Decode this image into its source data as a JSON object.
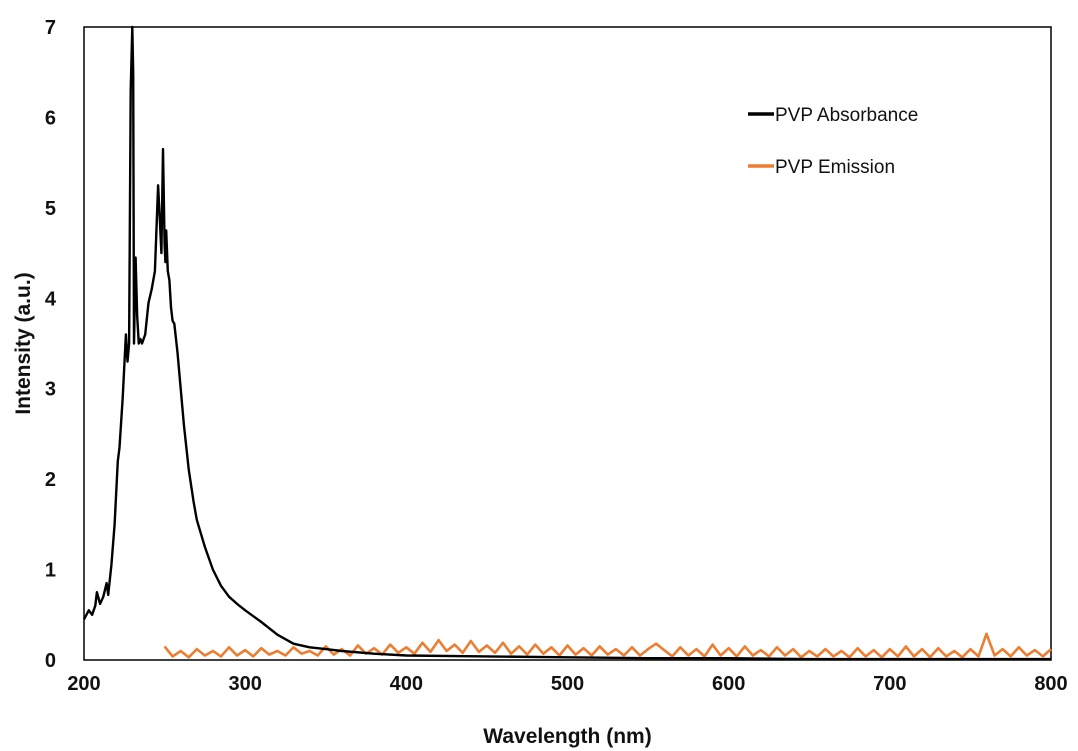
{
  "chart_data": {
    "type": "line",
    "xlabel": "Wavelength (nm)",
    "ylabel": "Intensity (a.u.)",
    "xlim": [
      200,
      800
    ],
    "ylim": [
      0,
      7
    ],
    "xticks": [
      200,
      300,
      400,
      500,
      600,
      700,
      800
    ],
    "yticks": [
      0,
      1,
      2,
      3,
      4,
      5,
      6,
      7
    ],
    "grid": false,
    "legend_position": "top-right",
    "series": [
      {
        "name": "PVP Absorbance",
        "color": "#000000",
        "x": [
          200,
          203,
          205,
          207,
          208,
          210,
          212,
          214,
          215,
          217,
          219,
          221,
          222,
          224,
          226,
          227,
          228,
          229,
          230,
          230.5,
          231,
          232,
          233,
          234,
          235,
          236,
          238,
          240,
          242,
          244,
          246,
          247,
          248,
          249,
          250,
          250.5,
          251,
          252,
          253,
          254,
          255,
          256,
          258,
          260,
          262,
          265,
          268,
          270,
          275,
          280,
          285,
          290,
          295,
          300,
          310,
          320,
          330,
          340,
          350,
          360,
          380,
          400,
          450,
          500,
          550,
          600,
          650,
          700,
          750,
          800
        ],
        "y": [
          0.45,
          0.55,
          0.5,
          0.6,
          0.75,
          0.62,
          0.7,
          0.85,
          0.72,
          1.05,
          1.5,
          2.2,
          2.35,
          2.9,
          3.6,
          3.3,
          3.5,
          6.3,
          7.0,
          6.5,
          3.5,
          4.45,
          3.8,
          3.5,
          3.55,
          3.5,
          3.6,
          3.95,
          4.1,
          4.3,
          5.25,
          4.9,
          4.5,
          5.65,
          4.6,
          4.4,
          4.75,
          4.3,
          4.2,
          3.9,
          3.75,
          3.72,
          3.4,
          3.0,
          2.6,
          2.1,
          1.75,
          1.55,
          1.25,
          1.0,
          0.82,
          0.7,
          0.62,
          0.55,
          0.42,
          0.28,
          0.18,
          0.14,
          0.12,
          0.1,
          0.07,
          0.05,
          0.04,
          0.03,
          0.02,
          0.02,
          0.01,
          0.01,
          0.01,
          0.01
        ]
      },
      {
        "name": "PVP Emission",
        "color": "#ED7D31",
        "x": [
          250,
          255,
          260,
          265,
          270,
          275,
          280,
          285,
          290,
          295,
          300,
          305,
          310,
          315,
          320,
          325,
          330,
          335,
          340,
          345,
          350,
          355,
          360,
          365,
          370,
          375,
          380,
          385,
          390,
          395,
          400,
          405,
          410,
          415,
          420,
          425,
          430,
          435,
          440,
          445,
          450,
          455,
          460,
          465,
          470,
          475,
          480,
          485,
          490,
          495,
          500,
          505,
          510,
          515,
          520,
          525,
          530,
          535,
          540,
          545,
          550,
          555,
          560,
          565,
          570,
          575,
          580,
          585,
          590,
          595,
          600,
          605,
          610,
          615,
          620,
          625,
          630,
          635,
          640,
          645,
          650,
          655,
          660,
          665,
          670,
          675,
          680,
          685,
          690,
          695,
          700,
          705,
          710,
          715,
          720,
          725,
          730,
          735,
          740,
          745,
          750,
          755,
          760,
          765,
          770,
          775,
          780,
          785,
          790,
          795,
          800
        ],
        "y": [
          0.15,
          0.04,
          0.1,
          0.03,
          0.12,
          0.05,
          0.1,
          0.04,
          0.14,
          0.05,
          0.11,
          0.04,
          0.13,
          0.06,
          0.1,
          0.05,
          0.14,
          0.07,
          0.1,
          0.05,
          0.15,
          0.06,
          0.12,
          0.05,
          0.16,
          0.07,
          0.13,
          0.06,
          0.17,
          0.08,
          0.14,
          0.07,
          0.19,
          0.09,
          0.22,
          0.1,
          0.17,
          0.08,
          0.21,
          0.09,
          0.16,
          0.08,
          0.19,
          0.07,
          0.15,
          0.06,
          0.17,
          0.07,
          0.14,
          0.05,
          0.16,
          0.06,
          0.13,
          0.05,
          0.15,
          0.06,
          0.12,
          0.05,
          0.14,
          0.05,
          0.12,
          0.18,
          0.11,
          0.04,
          0.14,
          0.05,
          0.12,
          0.04,
          0.17,
          0.05,
          0.13,
          0.04,
          0.15,
          0.05,
          0.11,
          0.04,
          0.14,
          0.05,
          0.12,
          0.03,
          0.1,
          0.04,
          0.12,
          0.04,
          0.1,
          0.03,
          0.13,
          0.04,
          0.11,
          0.03,
          0.12,
          0.04,
          0.15,
          0.04,
          0.12,
          0.03,
          0.13,
          0.04,
          0.1,
          0.03,
          0.12,
          0.04,
          0.29,
          0.05,
          0.12,
          0.04,
          0.14,
          0.05,
          0.11,
          0.04,
          0.12
        ]
      }
    ]
  }
}
